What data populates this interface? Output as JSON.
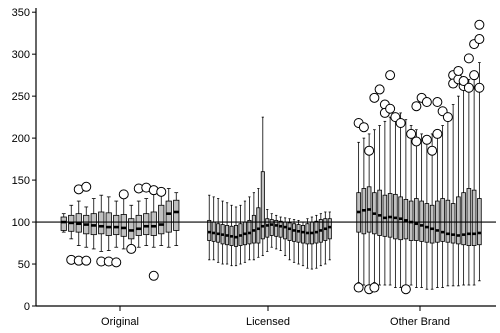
{
  "chart_data": {
    "type": "boxplot",
    "title": "",
    "xlabel": "",
    "ylabel": "",
    "ylim": [
      0,
      355
    ],
    "yticks": [
      0,
      50,
      100,
      150,
      200,
      250,
      300,
      350
    ],
    "reference_line": 100,
    "grid": false,
    "legend": "none",
    "colors": {
      "box_fill": "#c0c0c0",
      "stroke": "#000000",
      "median": "#000000",
      "background": "#ffffff"
    },
    "groups": [
      {
        "label": "Original",
        "boxes": [
          {
            "q1": 90,
            "median": 100,
            "q3": 106,
            "lower": 88,
            "upper": 110
          },
          {
            "q1": 89,
            "median": 99,
            "q3": 108,
            "lower": 80,
            "upper": 120
          },
          {
            "q1": 88,
            "median": 98,
            "q3": 110,
            "lower": 72,
            "upper": 125
          },
          {
            "q1": 86,
            "median": 97,
            "q3": 108,
            "lower": 70,
            "upper": 118
          },
          {
            "q1": 85,
            "median": 96,
            "q3": 110,
            "lower": 68,
            "upper": 128
          },
          {
            "q1": 86,
            "median": 95,
            "q3": 112,
            "lower": 65,
            "upper": 132
          },
          {
            "q1": 84,
            "median": 94,
            "q3": 111,
            "lower": 66,
            "upper": 130
          },
          {
            "q1": 85,
            "median": 94,
            "q3": 108,
            "lower": 70,
            "upper": 125
          },
          {
            "q1": 83,
            "median": 93,
            "q3": 109,
            "lower": 68,
            "upper": 128
          },
          {
            "q1": 80,
            "median": 90,
            "q3": 104,
            "lower": 66,
            "upper": 120
          },
          {
            "q1": 84,
            "median": 92,
            "q3": 108,
            "lower": 70,
            "upper": 125
          },
          {
            "q1": 85,
            "median": 95,
            "q3": 110,
            "lower": 72,
            "upper": 128
          },
          {
            "q1": 84,
            "median": 95,
            "q3": 112,
            "lower": 70,
            "upper": 133
          },
          {
            "q1": 86,
            "median": 97,
            "q3": 120,
            "lower": 72,
            "upper": 138
          },
          {
            "q1": 88,
            "median": 110,
            "q3": 125,
            "lower": 70,
            "upper": 140
          },
          {
            "q1": 90,
            "median": 112,
            "q3": 126,
            "lower": 72,
            "upper": 135
          }
        ],
        "outliers": [
          {
            "box": 1,
            "value": 55
          },
          {
            "box": 2,
            "value": 54
          },
          {
            "box": 3,
            "value": 54
          },
          {
            "box": 5,
            "value": 53
          },
          {
            "box": 6,
            "value": 53
          },
          {
            "box": 7,
            "value": 52
          },
          {
            "box": 2,
            "value": 139
          },
          {
            "box": 3,
            "value": 142
          },
          {
            "box": 9,
            "value": 68
          },
          {
            "box": 8,
            "value": 133
          },
          {
            "box": 10,
            "value": 140
          },
          {
            "box": 11,
            "value": 141
          },
          {
            "box": 12,
            "value": 138
          },
          {
            "box": 13,
            "value": 136
          },
          {
            "box": 12,
            "value": 36
          }
        ]
      },
      {
        "label": "Licensed",
        "boxes": [
          {
            "q1": 78,
            "median": 88,
            "q3": 102,
            "lower": 55,
            "upper": 132
          },
          {
            "q1": 77,
            "median": 87,
            "q3": 100,
            "lower": 55,
            "upper": 130
          },
          {
            "q1": 76,
            "median": 86,
            "q3": 98,
            "lower": 52,
            "upper": 128
          },
          {
            "q1": 74,
            "median": 85,
            "q3": 97,
            "lower": 50,
            "upper": 125
          },
          {
            "q1": 73,
            "median": 84,
            "q3": 96,
            "lower": 50,
            "upper": 123
          },
          {
            "q1": 72,
            "median": 83,
            "q3": 95,
            "lower": 48,
            "upper": 120
          },
          {
            "q1": 71,
            "median": 82,
            "q3": 96,
            "lower": 48,
            "upper": 118
          },
          {
            "q1": 72,
            "median": 84,
            "q3": 98,
            "lower": 50,
            "upper": 120
          },
          {
            "q1": 73,
            "median": 86,
            "q3": 100,
            "lower": 52,
            "upper": 125
          },
          {
            "q1": 74,
            "median": 87,
            "q3": 102,
            "lower": 55,
            "upper": 130
          },
          {
            "q1": 75,
            "median": 90,
            "q3": 108,
            "lower": 55,
            "upper": 135
          },
          {
            "q1": 75,
            "median": 92,
            "q3": 117,
            "lower": 58,
            "upper": 140
          },
          {
            "q1": 80,
            "median": 95,
            "q3": 160,
            "lower": 60,
            "upper": 225
          },
          {
            "q1": 82,
            "median": 96,
            "q3": 104,
            "lower": 65,
            "upper": 115
          },
          {
            "q1": 84,
            "median": 97,
            "q3": 103,
            "lower": 70,
            "upper": 110
          },
          {
            "q1": 83,
            "median": 96,
            "q3": 102,
            "lower": 68,
            "upper": 108
          },
          {
            "q1": 82,
            "median": 95,
            "q3": 101,
            "lower": 66,
            "upper": 106
          },
          {
            "q1": 80,
            "median": 94,
            "q3": 100,
            "lower": 60,
            "upper": 105
          },
          {
            "q1": 78,
            "median": 92,
            "q3": 99,
            "lower": 55,
            "upper": 104
          },
          {
            "q1": 77,
            "median": 90,
            "q3": 98,
            "lower": 52,
            "upper": 103
          },
          {
            "q1": 76,
            "median": 89,
            "q3": 97,
            "lower": 50,
            "upper": 102
          },
          {
            "q1": 75,
            "median": 88,
            "q3": 96,
            "lower": 48,
            "upper": 100
          },
          {
            "q1": 74,
            "median": 87,
            "q3": 98,
            "lower": 45,
            "upper": 104
          },
          {
            "q1": 74,
            "median": 87,
            "q3": 100,
            "lower": 44,
            "upper": 106
          },
          {
            "q1": 75,
            "median": 88,
            "q3": 101,
            "lower": 45,
            "upper": 108
          },
          {
            "q1": 76,
            "median": 90,
            "q3": 103,
            "lower": 48,
            "upper": 110
          },
          {
            "q1": 78,
            "median": 92,
            "q3": 104,
            "lower": 50,
            "upper": 112
          },
          {
            "q1": 80,
            "median": 94,
            "q3": 104,
            "lower": 55,
            "upper": 112
          }
        ],
        "outliers": []
      },
      {
        "label": "Other Brand",
        "boxes": [
          {
            "q1": 88,
            "median": 112,
            "q3": 135,
            "lower": 28,
            "upper": 195
          },
          {
            "q1": 86,
            "median": 114,
            "q3": 140,
            "lower": 25,
            "upper": 200
          },
          {
            "q1": 88,
            "median": 115,
            "q3": 142,
            "lower": 25,
            "upper": 205
          },
          {
            "q1": 86,
            "median": 110,
            "q3": 135,
            "lower": 28,
            "upper": 210
          },
          {
            "q1": 84,
            "median": 108,
            "q3": 138,
            "lower": 25,
            "upper": 215
          },
          {
            "q1": 83,
            "median": 105,
            "q3": 132,
            "lower": 25,
            "upper": 220
          },
          {
            "q1": 82,
            "median": 106,
            "q3": 134,
            "lower": 25,
            "upper": 225
          },
          {
            "q1": 80,
            "median": 105,
            "q3": 133,
            "lower": 22,
            "upper": 228
          },
          {
            "q1": 79,
            "median": 104,
            "q3": 130,
            "lower": 22,
            "upper": 230
          },
          {
            "q1": 80,
            "median": 102,
            "q3": 127,
            "lower": 24,
            "upper": 222
          },
          {
            "q1": 78,
            "median": 100,
            "q3": 125,
            "lower": 25,
            "upper": 215
          },
          {
            "q1": 78,
            "median": 98,
            "q3": 128,
            "lower": 22,
            "upper": 210
          },
          {
            "q1": 77,
            "median": 96,
            "q3": 125,
            "lower": 22,
            "upper": 205
          },
          {
            "q1": 76,
            "median": 94,
            "q3": 122,
            "lower": 20,
            "upper": 200
          },
          {
            "q1": 75,
            "median": 92,
            "q3": 120,
            "lower": 20,
            "upper": 205
          },
          {
            "q1": 76,
            "median": 90,
            "q3": 125,
            "lower": 22,
            "upper": 210
          },
          {
            "q1": 77,
            "median": 88,
            "q3": 128,
            "lower": 22,
            "upper": 215
          },
          {
            "q1": 76,
            "median": 86,
            "q3": 126,
            "lower": 24,
            "upper": 220
          },
          {
            "q1": 75,
            "median": 85,
            "q3": 122,
            "lower": 24,
            "upper": 240
          },
          {
            "q1": 74,
            "median": 84,
            "q3": 130,
            "lower": 24,
            "upper": 250
          },
          {
            "q1": 73,
            "median": 85,
            "q3": 135,
            "lower": 25,
            "upper": 260
          },
          {
            "q1": 72,
            "median": 86,
            "q3": 140,
            "lower": 25,
            "upper": 270
          },
          {
            "q1": 72,
            "median": 86,
            "q3": 138,
            "lower": 25,
            "upper": 280
          },
          {
            "q1": 73,
            "median": 87,
            "q3": 128,
            "lower": 30,
            "upper": 290
          }
        ],
        "outliers": [
          {
            "box": 0,
            "value": 218
          },
          {
            "box": 1,
            "value": 213
          },
          {
            "box": 0,
            "value": 22
          },
          {
            "box": 2,
            "value": 20
          },
          {
            "box": 3,
            "value": 22
          },
          {
            "box": 2,
            "value": 185
          },
          {
            "box": 3,
            "value": 248
          },
          {
            "box": 4,
            "value": 258
          },
          {
            "box": 5,
            "value": 240
          },
          {
            "box": 5,
            "value": 230
          },
          {
            "box": 6,
            "value": 235
          },
          {
            "box": 6,
            "value": 275
          },
          {
            "box": 7,
            "value": 225
          },
          {
            "box": 8,
            "value": 218
          },
          {
            "box": 9,
            "value": 20
          },
          {
            "box": 10,
            "value": 205
          },
          {
            "box": 11,
            "value": 196
          },
          {
            "box": 11,
            "value": 238
          },
          {
            "box": 12,
            "value": 248
          },
          {
            "box": 13,
            "value": 243
          },
          {
            "box": 13,
            "value": 198
          },
          {
            "box": 14,
            "value": 185
          },
          {
            "box": 15,
            "value": 243
          },
          {
            "box": 15,
            "value": 205
          },
          {
            "box": 16,
            "value": 232
          },
          {
            "box": 17,
            "value": 225
          },
          {
            "box": 18,
            "value": 275
          },
          {
            "box": 18,
            "value": 265
          },
          {
            "box": 19,
            "value": 270
          },
          {
            "box": 19,
            "value": 280
          },
          {
            "box": 20,
            "value": 262
          },
          {
            "box": 20,
            "value": 268
          },
          {
            "box": 21,
            "value": 295
          },
          {
            "box": 21,
            "value": 260
          },
          {
            "box": 22,
            "value": 312
          },
          {
            "box": 22,
            "value": 275
          },
          {
            "box": 23,
            "value": 318
          },
          {
            "box": 23,
            "value": 335
          },
          {
            "box": 23,
            "value": 260
          }
        ]
      }
    ]
  }
}
